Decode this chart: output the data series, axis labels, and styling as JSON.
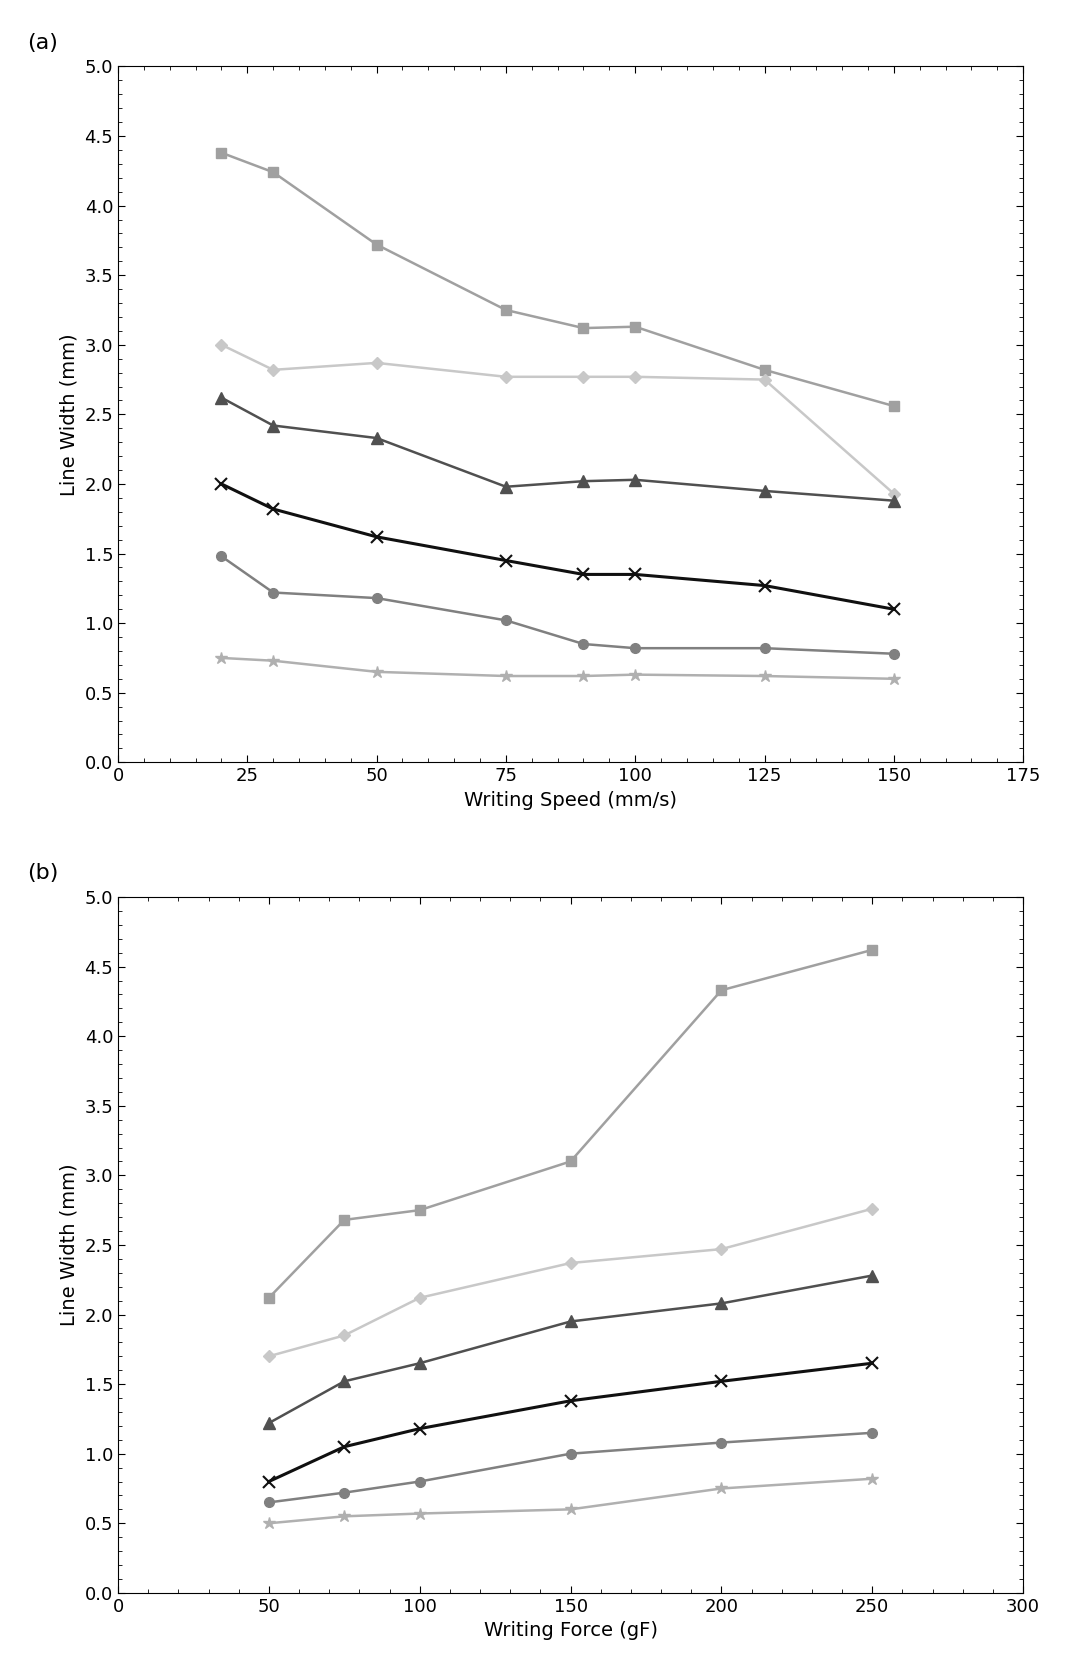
{
  "panel_a": {
    "xlabel": "Writing Speed (mm/s)",
    "ylabel": "Line Width (mm)",
    "xlim": [
      0,
      175
    ],
    "ylim": [
      0.0,
      5.0
    ],
    "xticks": [
      0,
      25,
      50,
      75,
      100,
      125,
      150,
      175
    ],
    "yticks": [
      0.0,
      0.5,
      1.0,
      1.5,
      2.0,
      2.5,
      3.0,
      3.5,
      4.0,
      4.5,
      5.0
    ],
    "x": [
      20,
      30,
      50,
      75,
      90,
      100,
      125,
      150
    ],
    "series": [
      {
        "y": [
          4.38,
          4.24,
          3.72,
          3.25,
          3.12,
          3.13,
          2.82,
          2.56
        ],
        "color": "#a0a0a0",
        "marker": "s",
        "markersize": 7,
        "linewidth": 1.8
      },
      {
        "y": [
          3.0,
          2.82,
          2.87,
          2.77,
          2.77,
          2.77,
          2.75,
          1.93
        ],
        "color": "#c8c8c8",
        "marker": "D",
        "markersize": 6,
        "linewidth": 1.8
      },
      {
        "y": [
          2.62,
          2.42,
          2.33,
          1.98,
          2.02,
          2.03,
          1.95,
          1.88
        ],
        "color": "#505050",
        "marker": "^",
        "markersize": 8,
        "linewidth": 1.8
      },
      {
        "y": [
          2.0,
          1.82,
          1.62,
          1.45,
          1.35,
          1.35,
          1.27,
          1.1
        ],
        "color": "#101010",
        "marker": "x",
        "markersize": 8,
        "linewidth": 2.2
      },
      {
        "y": [
          1.48,
          1.22,
          1.18,
          1.02,
          0.85,
          0.82,
          0.82,
          0.78
        ],
        "color": "#808080",
        "marker": "o",
        "markersize": 7,
        "linewidth": 1.8
      },
      {
        "y": [
          0.75,
          0.73,
          0.65,
          0.62,
          0.62,
          0.63,
          0.62,
          0.6
        ],
        "color": "#b0b0b0",
        "marker": "*",
        "markersize": 9,
        "linewidth": 1.8
      }
    ]
  },
  "panel_b": {
    "xlabel": "Writing Force (gF)",
    "ylabel": "Line Width (mm)",
    "xlim": [
      0,
      300
    ],
    "ylim": [
      0.0,
      5.0
    ],
    "xticks": [
      0,
      50,
      100,
      150,
      200,
      250,
      300
    ],
    "yticks": [
      0.0,
      0.5,
      1.0,
      1.5,
      2.0,
      2.5,
      3.0,
      3.5,
      4.0,
      4.5,
      5.0
    ],
    "x": [
      50,
      75,
      100,
      150,
      200,
      250
    ],
    "series": [
      {
        "y": [
          2.12,
          2.68,
          2.75,
          3.1,
          4.33,
          4.62
        ],
        "color": "#a0a0a0",
        "marker": "s",
        "markersize": 7,
        "linewidth": 1.8
      },
      {
        "y": [
          1.7,
          1.85,
          2.12,
          2.37,
          2.47,
          2.76
        ],
        "color": "#c8c8c8",
        "marker": "D",
        "markersize": 6,
        "linewidth": 1.8
      },
      {
        "y": [
          1.22,
          1.52,
          1.65,
          1.95,
          2.08,
          2.28
        ],
        "color": "#505050",
        "marker": "^",
        "markersize": 8,
        "linewidth": 1.8
      },
      {
        "y": [
          0.8,
          1.05,
          1.18,
          1.38,
          1.52,
          1.65
        ],
        "color": "#101010",
        "marker": "x",
        "markersize": 8,
        "linewidth": 2.2
      },
      {
        "y": [
          0.65,
          0.72,
          0.8,
          1.0,
          1.08,
          1.15
        ],
        "color": "#808080",
        "marker": "o",
        "markersize": 7,
        "linewidth": 1.8
      },
      {
        "y": [
          0.5,
          0.55,
          0.57,
          0.6,
          0.75,
          0.82
        ],
        "color": "#b0b0b0",
        "marker": "*",
        "markersize": 9,
        "linewidth": 1.8
      }
    ]
  },
  "label_fontsize": 14,
  "tick_fontsize": 13,
  "figure_bg": "#ffffff"
}
